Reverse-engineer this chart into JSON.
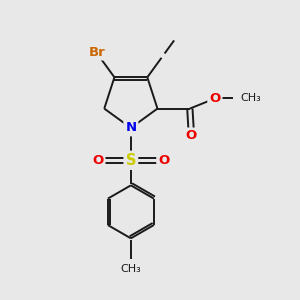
{
  "fig_bg": "#e8e8e8",
  "bond_color": "#1a1a1a",
  "bond_width": 1.4,
  "atom_colors": {
    "Br": "#cc6600",
    "N": "#0000ee",
    "S": "#cccc00",
    "O": "#ee0000",
    "black": "#1a1a1a"
  },
  "font_size": 9.5,
  "font_size_sm": 8.0
}
